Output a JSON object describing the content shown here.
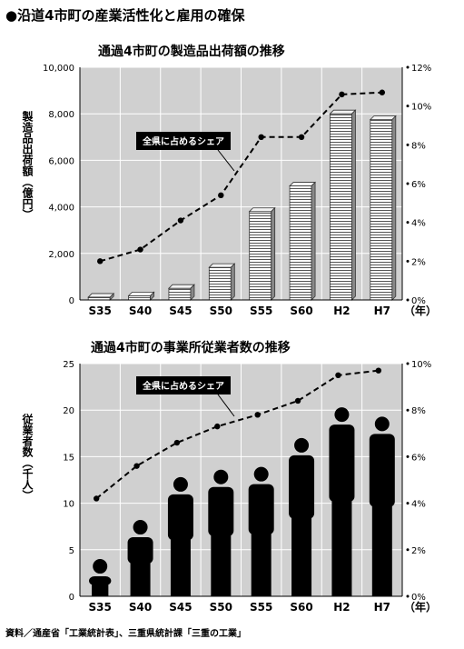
{
  "page_title": "●沿道4市町の産業活性化と雇用の確保",
  "source_note": "資料／通産省「工業統計表」、三重県統計課「三重の工業」",
  "chart_data": [
    {
      "type": "bar",
      "title": "通過4市町の製造品出荷額の推移",
      "ylabel": "製造品出荷額（億円）",
      "x_unit": "（年）",
      "categories": [
        "S35",
        "S40",
        "S45",
        "S50",
        "S55",
        "S60",
        "H2",
        "H7"
      ],
      "ylim": [
        0,
        10000
      ],
      "yticks": [
        "0",
        "2,000",
        "4,000",
        "6,000",
        "8,000",
        "10,000"
      ],
      "y2lim": [
        0,
        12
      ],
      "y2ticks": [
        "0%",
        "2%",
        "4%",
        "6%",
        "8%",
        "10%",
        "12%"
      ],
      "series": [
        {
          "values": [
            120,
            180,
            500,
            1400,
            3800,
            4900,
            8000,
            7750
          ]
        },
        {
          "name": "全県に占めるシェア",
          "axis": "right",
          "values": [
            2.0,
            2.6,
            4.1,
            5.4,
            8.4,
            8.4,
            10.6,
            10.7
          ]
        }
      ],
      "annotation": "全県に占めるシェア",
      "grid": true
    },
    {
      "type": "bar",
      "title": "通過4市町の事業所従業者数の推移",
      "ylabel": "従業者数（千人）",
      "x_unit": "（年）",
      "categories": [
        "S35",
        "S40",
        "S45",
        "S50",
        "S55",
        "S60",
        "H2",
        "H7"
      ],
      "ylim": [
        0,
        25
      ],
      "yticks": [
        "0",
        "5",
        "10",
        "15",
        "20",
        "25"
      ],
      "y2lim": [
        0,
        10
      ],
      "y2ticks": [
        "0%",
        "2%",
        "4%",
        "6%",
        "8%",
        "10%"
      ],
      "series": [
        {
          "values": [
            4.0,
            8.2,
            12.8,
            13.6,
            13.9,
            17.0,
            20.3,
            19.3
          ]
        },
        {
          "name": "全県に占めるシェア",
          "axis": "right",
          "values": [
            4.2,
            5.6,
            6.6,
            7.3,
            7.8,
            8.4,
            9.5,
            9.7
          ]
        }
      ],
      "annotation": "全県に占めるシェア",
      "grid": true
    }
  ]
}
